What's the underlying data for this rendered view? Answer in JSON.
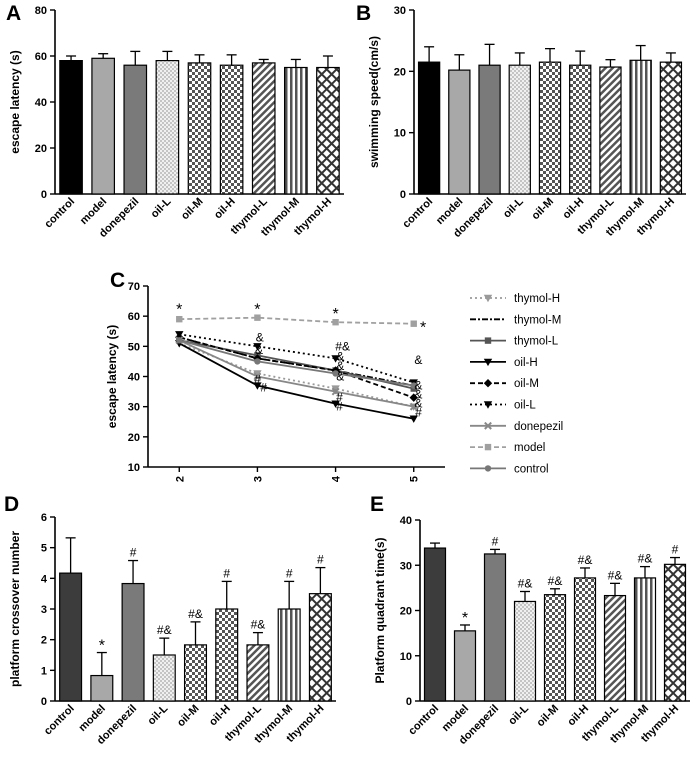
{
  "patterns": {
    "dots": "dots",
    "checker": "checker",
    "diagonal": "diagonal",
    "vertical": "vertical",
    "crosshatch": "crosshatch"
  },
  "chart_data": [
    {
      "panel": "A",
      "type": "bar",
      "ylabel": "escape latency (s)",
      "ylim": [
        0,
        80
      ],
      "yticks": [
        0,
        20,
        40,
        60,
        80
      ],
      "categories": [
        "control",
        "model",
        "donepezil",
        "oil-L",
        "oil-M",
        "oil-H",
        "thymol-L",
        "thymol-M",
        "thymol-H"
      ],
      "values": [
        58,
        59,
        56,
        58,
        57,
        56,
        57,
        55,
        55
      ],
      "errors": [
        2,
        2,
        6,
        4,
        3.5,
        4.5,
        1.5,
        3.5,
        5
      ],
      "labels": [
        "",
        "",
        "",
        "",
        "",
        "",
        "",
        "",
        ""
      ],
      "fills": [
        "#000000",
        "#a8a8a8",
        "#7a7a7a",
        "dots",
        "checker",
        "checker",
        "diagonal",
        "vertical",
        "crosshatch"
      ]
    },
    {
      "panel": "B",
      "type": "bar",
      "ylabel": "swimming speed(cm/s)",
      "ylim": [
        0,
        30
      ],
      "yticks": [
        0,
        10,
        20,
        30
      ],
      "categories": [
        "control",
        "model",
        "donepezil",
        "oil-L",
        "oil-M",
        "oil-H",
        "thymol-L",
        "thymol-M",
        "thymol-H"
      ],
      "values": [
        21.5,
        20.2,
        21,
        21,
        21.5,
        21,
        20.7,
        21.8,
        21.5
      ],
      "errors": [
        2.5,
        2.5,
        3.4,
        2,
        2.2,
        2.3,
        1.2,
        2.4,
        1.5
      ],
      "labels": [
        "",
        "",
        "",
        "",
        "",
        "",
        "",
        "",
        ""
      ],
      "fills": [
        "#000000",
        "#a8a8a8",
        "#7a7a7a",
        "dots",
        "checker",
        "checker",
        "diagonal",
        "vertical",
        "crosshatch"
      ]
    },
    {
      "panel": "C",
      "type": "line",
      "ylabel": "escape latency (s)",
      "ylim": [
        10,
        70
      ],
      "yticks": [
        10,
        20,
        30,
        40,
        50,
        60,
        70
      ],
      "x": [
        2,
        3,
        4,
        5
      ],
      "series": [
        {
          "name": "thymol-H",
          "values": [
            51,
            41,
            36,
            30
          ],
          "color": "#9a9a9a",
          "dash": "2,3",
          "marker": "tri-down"
        },
        {
          "name": "thymol-M",
          "values": [
            53,
            46,
            42,
            37
          ],
          "color": "#000000",
          "dash": "6,2,2,2",
          "marker": "none"
        },
        {
          "name": "thymol-L",
          "values": [
            52,
            47,
            42,
            36
          ],
          "color": "#555555",
          "dash": "",
          "marker": "square"
        },
        {
          "name": "oil-H",
          "values": [
            51,
            37,
            31,
            26
          ],
          "color": "#000000",
          "dash": "",
          "marker": "tri-down"
        },
        {
          "name": "oil-M",
          "values": [
            53,
            46,
            42,
            33
          ],
          "color": "#000000",
          "dash": "5,3",
          "marker": "diamond"
        },
        {
          "name": "oil-L",
          "values": [
            54,
            50,
            46,
            38
          ],
          "color": "#000000",
          "dash": "2,3",
          "marker": "tri-down"
        },
        {
          "name": "donepezil",
          "values": [
            52,
            40,
            35,
            30
          ],
          "color": "#888888",
          "dash": "",
          "marker": "cross"
        },
        {
          "name": "model",
          "values": [
            59,
            59.5,
            58,
            57.5
          ],
          "color": "#a0a0a0",
          "dash": "5,3",
          "marker": "square"
        },
        {
          "name": "control",
          "values": [
            52,
            45,
            41,
            37
          ],
          "color": "#777777",
          "dash": "",
          "marker": "circle"
        }
      ],
      "annotations": [
        {
          "x": 2,
          "y": 62.5,
          "text": "*"
        },
        {
          "x": 3,
          "y": 62.5,
          "text": "*"
        },
        {
          "x": 4,
          "y": 61,
          "text": "*"
        },
        {
          "x": 5.12,
          "y": 56.5,
          "text": "*"
        },
        {
          "x": 3.03,
          "y": 53,
          "text": "&"
        },
        {
          "x": 3.02,
          "y": 48.8,
          "text": "&"
        },
        {
          "x": 3.0,
          "y": 39,
          "text": "#"
        },
        {
          "x": 3.08,
          "y": 36.3,
          "text": "#"
        },
        {
          "x": 4.09,
          "y": 50,
          "text": "#&"
        },
        {
          "x": 4.06,
          "y": 46.7,
          "text": "&"
        },
        {
          "x": 4.06,
          "y": 43.5,
          "text": "&"
        },
        {
          "x": 4.06,
          "y": 40,
          "text": "&"
        },
        {
          "x": 4.05,
          "y": 33,
          "text": "#"
        },
        {
          "x": 4.05,
          "y": 30,
          "text": "#"
        },
        {
          "x": 5.06,
          "y": 45.5,
          "text": "&"
        },
        {
          "x": 5.06,
          "y": 37,
          "text": "&"
        },
        {
          "x": 5.06,
          "y": 34,
          "text": "&"
        },
        {
          "x": 5.06,
          "y": 31,
          "text": "&"
        },
        {
          "x": 5.06,
          "y": 28,
          "text": "#"
        }
      ]
    },
    {
      "panel": "D",
      "type": "bar",
      "ylabel": "platform crossover number",
      "ylim": [
        0,
        6
      ],
      "yticks": [
        0,
        1,
        2,
        3,
        4,
        5,
        6
      ],
      "categories": [
        "control",
        "model",
        "donepezil",
        "oil-L",
        "oil-M",
        "oil-H",
        "thymol-L",
        "thymol-M",
        "thymol-H"
      ],
      "values": [
        4.17,
        0.83,
        3.83,
        1.5,
        1.83,
        3.0,
        1.83,
        3.0,
        3.5
      ],
      "errors": [
        1.15,
        0.75,
        0.75,
        0.55,
        0.75,
        0.9,
        0.4,
        0.9,
        0.85
      ],
      "labels": [
        "",
        "*",
        "#",
        "#&",
        "#&",
        "#",
        "#&",
        "#",
        "#"
      ],
      "fills": [
        "#3c3c3c",
        "#a8a8a8",
        "#7a7a7a",
        "dots",
        "checker",
        "checker",
        "diagonal",
        "vertical",
        "crosshatch"
      ]
    },
    {
      "panel": "E",
      "type": "bar",
      "ylabel": "Platform quadrant time(s)",
      "ylim": [
        0,
        40
      ],
      "yticks": [
        0,
        10,
        20,
        30,
        40
      ],
      "categories": [
        "control",
        "model",
        "donepezil",
        "oil-L",
        "oil-M",
        "oil-H",
        "thymol-L",
        "thymol-M",
        "thymol-H"
      ],
      "values": [
        33.8,
        15.5,
        32.5,
        22,
        23.5,
        27.2,
        23.3,
        27.2,
        30.2
      ],
      "errors": [
        1.1,
        1.3,
        1.0,
        2.2,
        1.3,
        2.2,
        2.7,
        2.5,
        1.5
      ],
      "labels": [
        "",
        "*",
        "#",
        "#&",
        "#&",
        "#&",
        "#&",
        "#&",
        "#"
      ],
      "fills": [
        "#3c3c3c",
        "#a8a8a8",
        "#7a7a7a",
        "dots",
        "checker",
        "checker",
        "diagonal",
        "vertical",
        "crosshatch"
      ]
    }
  ]
}
